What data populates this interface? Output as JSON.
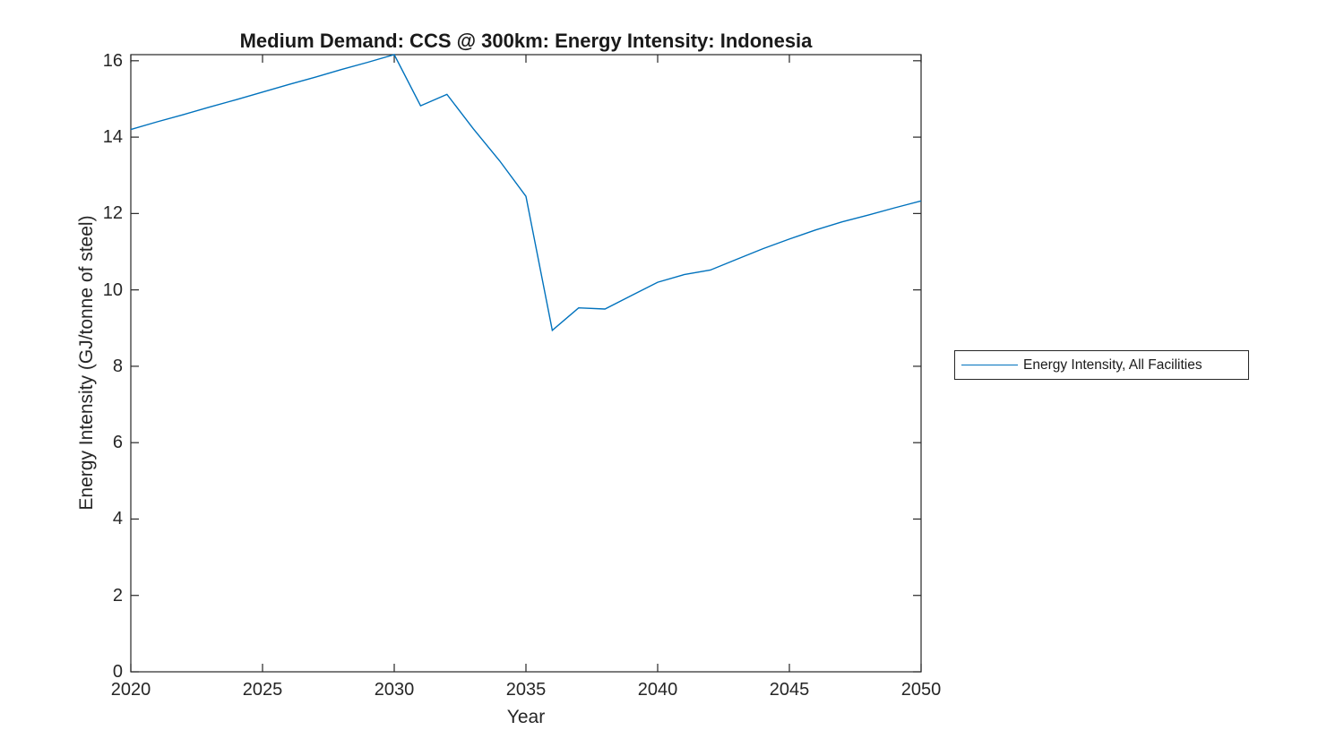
{
  "chart_data": {
    "type": "line",
    "title": "Medium Demand: CCS @ 300km: Energy Intensity: Indonesia",
    "xlabel": "Year",
    "ylabel": "Energy Intensity (GJ/tonne of steel)",
    "xlim": [
      2020,
      2050
    ],
    "ylim": [
      0,
      16.16
    ],
    "xticks": [
      2020,
      2025,
      2030,
      2035,
      2040,
      2045,
      2050
    ],
    "yticks": [
      0,
      2,
      4,
      6,
      8,
      10,
      12,
      14,
      16
    ],
    "grid": false,
    "axis_color": "#262626",
    "background": "#ffffff",
    "legend": {
      "position": "outside-right",
      "entries": [
        {
          "label": "Energy Intensity, All Facilities",
          "color": "#0072BD"
        }
      ]
    },
    "series": [
      {
        "name": "Energy Intensity, All Facilities",
        "color": "#0072BD",
        "x": [
          2020,
          2021,
          2022,
          2023,
          2024,
          2025,
          2026,
          2027,
          2028,
          2029,
          2030,
          2031,
          2032,
          2033,
          2034,
          2035,
          2036,
          2037,
          2038,
          2039,
          2040,
          2041,
          2042,
          2043,
          2044,
          2045,
          2046,
          2047,
          2048,
          2049,
          2050
        ],
        "values": [
          14.2,
          14.4,
          14.59,
          14.79,
          14.98,
          15.18,
          15.38,
          15.57,
          15.77,
          15.96,
          16.16,
          14.82,
          15.12,
          14.22,
          13.38,
          12.45,
          8.94,
          9.53,
          9.5,
          9.85,
          10.2,
          10.4,
          10.52,
          10.8,
          11.08,
          11.33,
          11.57,
          11.78,
          11.96,
          12.15,
          12.33
        ]
      }
    ]
  }
}
